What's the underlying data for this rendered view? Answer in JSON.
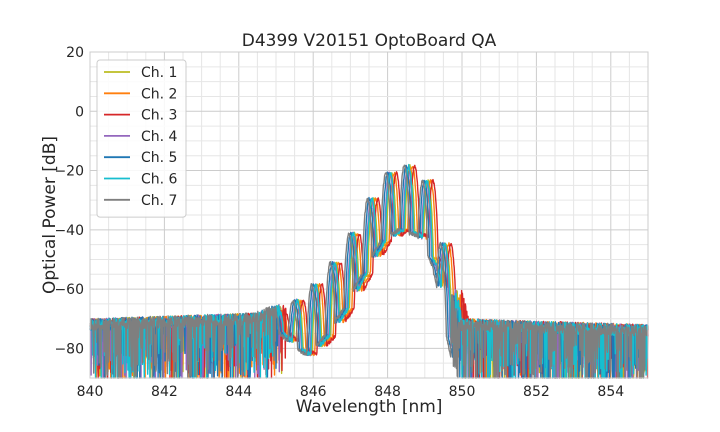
{
  "chart_data": {
    "type": "line",
    "title": "D4399 V20151 OptoBoard QA",
    "xlabel": "Wavelength [nm]",
    "ylabel": "Optical Power [dB]",
    "xlim": [
      840,
      855
    ],
    "ylim": [
      -90,
      20
    ],
    "xticks": [
      840,
      842,
      844,
      846,
      848,
      850,
      852,
      854
    ],
    "yticks": [
      -80,
      -60,
      -40,
      -20,
      0,
      20
    ],
    "grid": true,
    "legend_position": "top-left",
    "noise_floor_db": -72,
    "peak_offset_nm": [
      0.05,
      0.12,
      0.18,
      0.0,
      -0.05,
      0.02,
      -0.1
    ],
    "series": [
      {
        "name": "Ch. 1",
        "color": "#bcbd22"
      },
      {
        "name": "Ch. 2",
        "color": "#ff7f0e"
      },
      {
        "name": "Ch. 3",
        "color": "#d62728"
      },
      {
        "name": "Ch. 4",
        "color": "#9467bd"
      },
      {
        "name": "Ch. 5",
        "color": "#1f77b4"
      },
      {
        "name": "Ch. 6",
        "color": "#17becf"
      },
      {
        "name": "Ch. 7",
        "color": "#7f7f7f"
      }
    ],
    "envelope": {
      "x": [
        840,
        844.5,
        845.3,
        845.8,
        846.4,
        846.9,
        847.4,
        847.9,
        848.4,
        848.9,
        849.3,
        849.7,
        850.0,
        855
      ],
      "y": [
        -72,
        -70,
        -66,
        -62,
        -54,
        -45,
        -33,
        -22,
        -18,
        -20,
        -30,
        -55,
        -72,
        -74
      ]
    }
  }
}
